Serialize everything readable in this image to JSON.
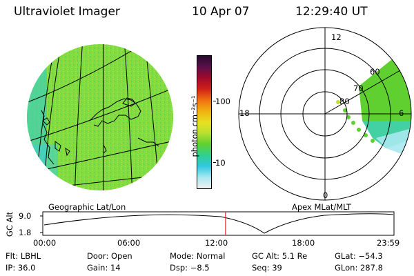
{
  "header": {
    "title": "Ultraviolet Imager",
    "date": "10 Apr 07",
    "time": "12:29:40 UT"
  },
  "left_panel": {
    "caption": "Geographic Lat/Lon"
  },
  "right_panel": {
    "caption": "Apex MLat/MLT",
    "mlt_labels": {
      "top": "12",
      "left": "18",
      "right": "6",
      "bottom": "0"
    },
    "mlat_labels": [
      "60",
      "70",
      "80"
    ]
  },
  "colorbar": {
    "label": "photon cm⁻²s⁻¹",
    "ticks": [
      {
        "label": "100",
        "value": 100
      },
      {
        "label": "10",
        "value": 10
      }
    ],
    "colors": [
      "#2a0a30",
      "#5a0f4a",
      "#a00a2a",
      "#d0201a",
      "#f07010",
      "#f0b010",
      "#e8e020",
      "#b8e030",
      "#60d030",
      "#30d090",
      "#30c8e0",
      "#a8e8f0",
      "#f0f0f0"
    ]
  },
  "altitude_plot": {
    "ylabel": "GC Alt",
    "yticks": [
      "9.0",
      "1.8"
    ],
    "xticks": [
      "00:00",
      "06:00",
      "12:00",
      "18:00",
      "23:59"
    ],
    "current_time_hours": 12.49
  },
  "info": {
    "row1": [
      {
        "key": "Flt:",
        "value": "LBHL"
      },
      {
        "key": "Door:",
        "value": "Open"
      },
      {
        "key": "Mode:",
        "value": "Normal"
      },
      {
        "key": "GC Alt:",
        "value": "5.1 Re"
      },
      {
        "key": "GLat:",
        "value": "−54.3"
      }
    ],
    "row2": [
      {
        "key": "IP:",
        "value": "36.0"
      },
      {
        "key": "Gain:",
        "value": "14"
      },
      {
        "key": "Dsp:",
        "value": "−8.5"
      },
      {
        "key": "Seq:",
        "value": "39"
      },
      {
        "key": "GLon:",
        "value": "287.8"
      }
    ]
  }
}
